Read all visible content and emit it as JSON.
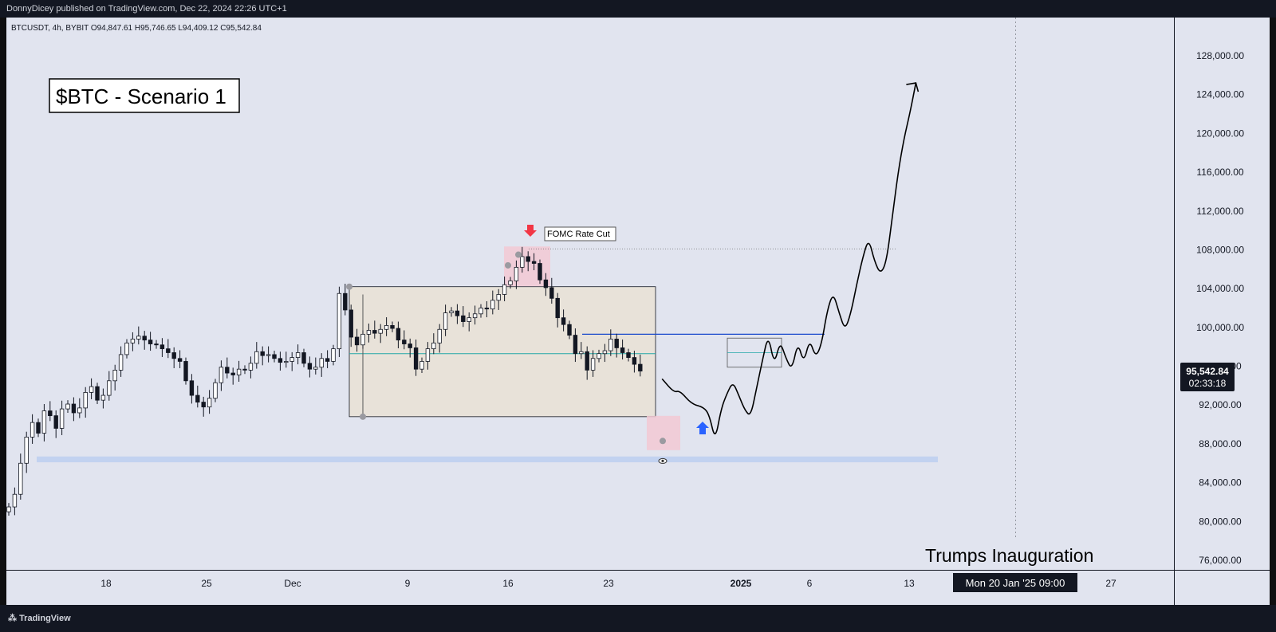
{
  "header": {
    "publish_line": "DonnyDicey published on TradingView.com, Dec 22, 2024 22:26 UTC+1"
  },
  "symbol_line": "BTCUSDT, 4h, BYBIT  O94,847.61  H95,746.65  L94,409.12  C95,542.84",
  "footer": {
    "brand": "TradingView"
  },
  "annotations": {
    "title": "$BTC - Scenario 1",
    "fomc": "FOMC Rate Cut",
    "inauguration": "Trumps Inauguration",
    "date_marker": "Mon 20 Jan '25   09:00"
  },
  "price_label": {
    "price": "95,542.84",
    "countdown": "02:33:18"
  },
  "colors": {
    "candle": "#131722",
    "box_fill": "#e8e2d9",
    "highlight": "#f2c9d4",
    "support_band": "#c2d2f0",
    "resistance_line": "#1848cc",
    "mid_line": "#22a8a8",
    "arrow_up": "#2962ff",
    "arrow_down": "#f23645"
  },
  "chart_data": {
    "type": "candlestick",
    "symbol": "BTCUSDT",
    "interval": "4h",
    "exchange": "BYBIT",
    "last_ohlc": {
      "open": 94847.61,
      "high": 95746.65,
      "low": 94409.12,
      "close": 95542.84
    },
    "y_ticks": [
      "76,000.00",
      "80,000.00",
      "84,000.00",
      "88,000.00",
      "92,000.00",
      "96,000.00",
      "100,000.00",
      "104,000.00",
      "108,000.00",
      "112,000.00",
      "116,000.00",
      "120,000.00",
      "124,000.00",
      "128,000.00"
    ],
    "y_range": [
      75000,
      130000
    ],
    "x_ticks": [
      "18",
      "25",
      "Dec",
      "9",
      "16",
      "23",
      "2025",
      "6",
      "13",
      "27"
    ],
    "price_path": [
      [
        0,
        81500
      ],
      [
        1,
        82800
      ],
      [
        2,
        86000
      ],
      [
        3,
        88700
      ],
      [
        4,
        90200
      ],
      [
        5,
        89100
      ],
      [
        6,
        91400
      ],
      [
        7,
        90900
      ],
      [
        8,
        89600
      ],
      [
        9,
        91600
      ],
      [
        10,
        92100
      ],
      [
        11,
        91200
      ],
      [
        12,
        91700
      ],
      [
        13,
        93300
      ],
      [
        14,
        93900
      ],
      [
        15,
        92500
      ],
      [
        16,
        93000
      ],
      [
        17,
        94500
      ],
      [
        18,
        95600
      ],
      [
        19,
        97200
      ],
      [
        20,
        98400
      ],
      [
        21,
        98800
      ],
      [
        22,
        99100
      ],
      [
        23,
        98700
      ],
      [
        24,
        98300
      ],
      [
        25,
        98200
      ],
      [
        26,
        97800
      ],
      [
        27,
        97400
      ],
      [
        28,
        96800
      ],
      [
        29,
        96500
      ],
      [
        30,
        94500
      ],
      [
        31,
        93000
      ],
      [
        32,
        92300
      ],
      [
        33,
        91800
      ],
      [
        34,
        92700
      ],
      [
        35,
        94300
      ],
      [
        36,
        95900
      ],
      [
        37,
        95300
      ],
      [
        38,
        95100
      ],
      [
        39,
        95700
      ],
      [
        40,
        95600
      ],
      [
        41,
        96300
      ],
      [
        42,
        97500
      ],
      [
        43,
        97100
      ],
      [
        44,
        97200
      ],
      [
        45,
        96800
      ],
      [
        46,
        96400
      ],
      [
        47,
        96500
      ],
      [
        48,
        96900
      ],
      [
        49,
        97400
      ],
      [
        50,
        96300
      ],
      [
        51,
        95700
      ],
      [
        52,
        95900
      ],
      [
        53,
        96800
      ],
      [
        54,
        96500
      ],
      [
        55,
        97800
      ],
      [
        56,
        103500
      ],
      [
        57,
        101800
      ],
      [
        58,
        99000
      ],
      [
        59,
        98200
      ],
      [
        60,
        99300
      ],
      [
        61,
        99700
      ],
      [
        62,
        99400
      ],
      [
        63,
        99800
      ],
      [
        64,
        100200
      ],
      [
        65,
        99900
      ],
      [
        66,
        98700
      ],
      [
        67,
        98300
      ],
      [
        68,
        97900
      ],
      [
        69,
        95700
      ],
      [
        70,
        96500
      ],
      [
        71,
        97800
      ],
      [
        72,
        98400
      ],
      [
        73,
        99800
      ],
      [
        74,
        101500
      ],
      [
        75,
        101700
      ],
      [
        76,
        101200
      ],
      [
        77,
        100600
      ],
      [
        78,
        101000
      ],
      [
        79,
        101400
      ],
      [
        80,
        102000
      ],
      [
        81,
        101900
      ],
      [
        82,
        102800
      ],
      [
        83,
        103400
      ],
      [
        84,
        104400
      ],
      [
        85,
        104800
      ],
      [
        86,
        106200
      ],
      [
        87,
        107300
      ],
      [
        88,
        106800
      ],
      [
        89,
        106600
      ],
      [
        90,
        104900
      ],
      [
        91,
        104100
      ],
      [
        92,
        103000
      ],
      [
        93,
        101000
      ],
      [
        94,
        100300
      ],
      [
        95,
        99200
      ],
      [
        96,
        97300
      ],
      [
        97,
        97500
      ],
      [
        98,
        95600
      ],
      [
        99,
        96800
      ],
      [
        100,
        97300
      ],
      [
        101,
        97600
      ],
      [
        102,
        98800
      ],
      [
        103,
        97900
      ],
      [
        104,
        97400
      ],
      [
        105,
        96900
      ],
      [
        106,
        96200
      ],
      [
        107,
        95500
      ]
    ],
    "levels": {
      "range_high": 104200,
      "range_low": 90800,
      "range_mid": 97300,
      "fomc_high": 108100,
      "resistance": 99300,
      "support_band": [
        86100,
        86700
      ]
    },
    "projection_path": [
      [
        108,
        94700
      ],
      [
        110,
        93300
      ],
      [
        111,
        93500
      ],
      [
        113,
        92100
      ],
      [
        115,
        91800
      ],
      [
        116,
        91000
      ],
      [
        117,
        88300
      ],
      [
        118,
        91600
      ],
      [
        119,
        93200
      ],
      [
        120,
        94400
      ],
      [
        121,
        93000
      ],
      [
        122,
        91500
      ],
      [
        123,
        90800
      ],
      [
        124,
        93700
      ],
      [
        125,
        96600
      ],
      [
        126,
        99300
      ],
      [
        127,
        96100
      ],
      [
        128,
        98600
      ],
      [
        129,
        96800
      ],
      [
        130,
        95600
      ],
      [
        131,
        98500
      ],
      [
        132,
        96300
      ],
      [
        133,
        98800
      ],
      [
        134,
        96900
      ],
      [
        135,
        98200
      ],
      [
        136,
        101800
      ],
      [
        137,
        103600
      ],
      [
        138,
        101500
      ],
      [
        139,
        99700
      ],
      [
        140,
        101500
      ],
      [
        141,
        104500
      ],
      [
        142,
        107200
      ],
      [
        143,
        109200
      ],
      [
        144,
        106800
      ],
      [
        145,
        105500
      ],
      [
        146,
        106700
      ],
      [
        147,
        111300
      ],
      [
        148,
        116000
      ],
      [
        149,
        119500
      ],
      [
        150,
        122100
      ],
      [
        151,
        125200
      ]
    ]
  }
}
